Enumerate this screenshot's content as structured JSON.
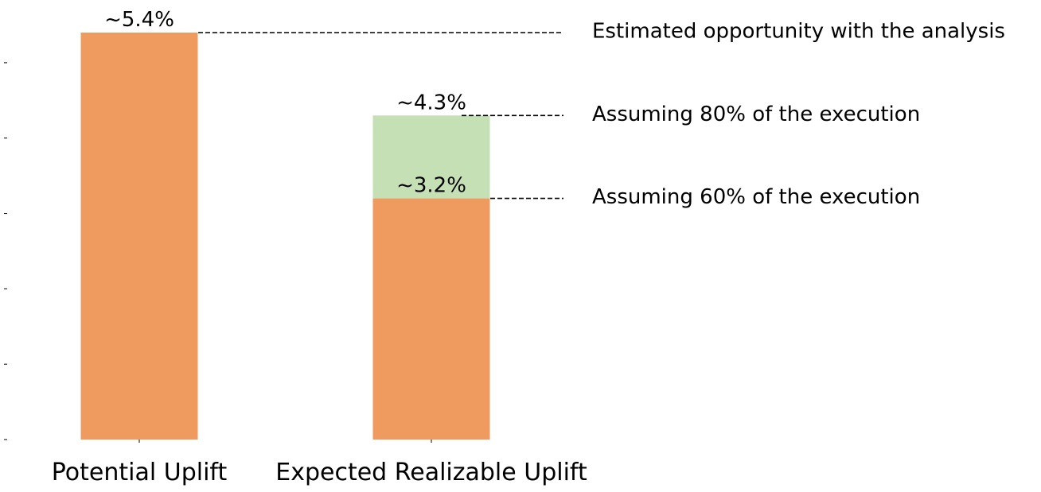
{
  "chart_data": {
    "type": "bar",
    "stacked": true,
    "categories": [
      "Potential Uplift",
      "Expected Realizable Uplift"
    ],
    "series": [
      {
        "values": [
          5.4,
          3.2
        ],
        "color": "#ef9a5f"
      },
      {
        "values": [
          0,
          1.1
        ],
        "color": "#c5e0b4"
      }
    ],
    "data_labels": [
      {
        "category": 0,
        "value": 5.4,
        "text": "~5.4%"
      },
      {
        "category": 1,
        "value": 4.3,
        "text": "~4.3%"
      },
      {
        "category": 1,
        "value": 3.2,
        "text": "~3.2%"
      }
    ],
    "reference_lines": [
      {
        "value": 5.4,
        "label": "Estimated opportunity with the analysis",
        "style": "dashed"
      },
      {
        "value": 4.3,
        "label": "Assuming 80% of the execution",
        "style": "dashed"
      },
      {
        "value": 3.2,
        "label": "Assuming 60% of the execution",
        "style": "dashed"
      }
    ],
    "ylim": [
      0,
      5.4
    ],
    "y_ticks": [
      0,
      1,
      2,
      3,
      4,
      5
    ],
    "y_tick_labels_visible": false,
    "grid": false,
    "spines_visible": false,
    "legend": "none"
  }
}
